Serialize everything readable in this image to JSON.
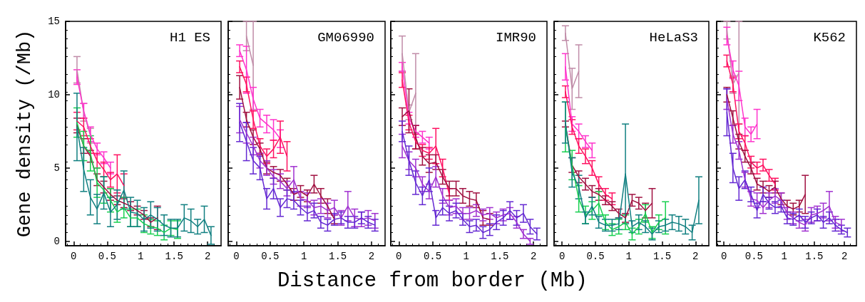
{
  "chart_data": [
    {
      "type": "line",
      "title": "H1 ES",
      "ylabel": "Gene density (/Mb)",
      "xlim": [
        -0.12,
        2.2
      ],
      "ylim": [
        -0.3,
        15
      ],
      "xticks": [
        0,
        0.5,
        1,
        1.5,
        2
      ],
      "yticks": [
        0,
        5,
        10,
        15
      ],
      "grid": false,
      "marker": "none",
      "line_style": "solid",
      "series": [
        {
          "color": "#c08ca8",
          "x": [
            0.05,
            0.15,
            0.25
          ],
          "values": [
            11.7,
            8.8,
            7.2
          ],
          "errors": [
            0.9,
            0.6,
            0.5
          ]
        },
        {
          "color": "#ff33cc",
          "x": [
            0.05,
            0.15,
            0.25,
            0.35,
            0.45,
            0.55
          ],
          "values": [
            11.2,
            8.9,
            7.3,
            6.3,
            5.7,
            5.0
          ],
          "errors": [
            0.5,
            0.5,
            0.5,
            0.4,
            0.4,
            0.4
          ]
        },
        {
          "color": "#ff1060",
          "x": [
            0.05,
            0.15,
            0.25,
            0.35,
            0.45,
            0.55,
            0.65,
            0.75
          ],
          "values": [
            8.2,
            7.8,
            6.5,
            5.5,
            4.9,
            4.2,
            4.6,
            3.8
          ],
          "errors": [
            0.6,
            0.6,
            0.5,
            0.5,
            0.5,
            0.5,
            1.3,
            0.8
          ]
        },
        {
          "color": "#a01040",
          "x": [
            0.05,
            0.15,
            0.25,
            0.35,
            0.45,
            0.55,
            0.65,
            0.75,
            0.85,
            0.95,
            1.05,
            1.15,
            1.25
          ],
          "values": [
            7.9,
            6.5,
            5.8,
            4.2,
            3.7,
            3.2,
            2.8,
            2.6,
            2.4,
            2.1,
            1.8,
            1.3,
            1.6
          ],
          "errors": [
            0.5,
            0.5,
            0.4,
            0.4,
            0.4,
            0.4,
            0.3,
            0.3,
            0.3,
            0.3,
            0.3,
            0.3,
            0.8
          ]
        },
        {
          "color": "#18d050",
          "x": [
            0.05,
            0.15,
            0.25,
            0.35,
            0.45,
            0.55,
            0.65,
            0.75,
            0.85,
            0.95,
            1.05,
            1.15,
            1.25,
            1.35,
            1.45,
            1.55
          ],
          "values": [
            8.1,
            6.5,
            6.0,
            4.0,
            3.5,
            2.8,
            2.0,
            2.3,
            1.6,
            1.6,
            1.2,
            1.0,
            0.9,
            0.6,
            0.9,
            0.8
          ],
          "errors": [
            1.0,
            1.0,
            1.2,
            1.0,
            0.9,
            0.8,
            0.7,
            0.7,
            0.6,
            0.6,
            0.6,
            0.5,
            0.5,
            0.5,
            0.5,
            0.6
          ]
        },
        {
          "color": "#107f80",
          "x": [
            0.05,
            0.15,
            0.25,
            0.35,
            0.45,
            0.55,
            0.65,
            0.75,
            0.85,
            0.95,
            1.05,
            1.15,
            1.25,
            1.35,
            1.45,
            1.55,
            1.65,
            1.75,
            1.85,
            1.95,
            2.05
          ],
          "values": [
            7.8,
            4.9,
            3.0,
            2.2,
            3.3,
            2.0,
            2.5,
            3.5,
            2.0,
            1.9,
            1.5,
            1.8,
            1.5,
            1.1,
            0.9,
            0.9,
            1.6,
            1.4,
            1.0,
            1.5,
            0.4
          ],
          "errors": [
            2.3,
            1.5,
            1.2,
            1.0,
            1.1,
            1.0,
            1.0,
            1.3,
            1.0,
            0.9,
            0.8,
            0.9,
            0.8,
            0.7,
            0.6,
            0.6,
            0.9,
            0.8,
            0.5,
            0.9,
            0.6
          ]
        }
      ]
    },
    {
      "type": "line",
      "title": "GM06990",
      "xlim": [
        -0.12,
        2.2
      ],
      "ylim": [
        -0.3,
        15
      ],
      "xticks": [
        0,
        0.5,
        1,
        1.5,
        2
      ],
      "yticks": [
        0,
        5,
        10,
        15
      ],
      "tick_labels": "x",
      "grid": false,
      "marker": "none",
      "line_style": "solid",
      "series": [
        {
          "color": "#c08ca8",
          "x": [
            0.15,
            0.25
          ],
          "values": [
            14.0,
            12.0
          ],
          "errors": [
            1.0,
            3.0
          ]
        },
        {
          "color": "#ff33cc",
          "x": [
            0.05,
            0.15,
            0.25,
            0.35,
            0.45,
            0.55,
            0.65
          ],
          "values": [
            13.0,
            11.7,
            9.7,
            8.4,
            8.0,
            7.6,
            7.0
          ],
          "errors": [
            0.4,
            1.6,
            0.8,
            0.6,
            0.6,
            0.7,
            0.6
          ]
        },
        {
          "color": "#ff1060",
          "x": [
            0.05,
            0.15,
            0.25,
            0.35,
            0.45,
            0.55,
            0.65,
            0.75
          ],
          "values": [
            11.9,
            10.7,
            8.3,
            6.5,
            5.8,
            6.3,
            7.1,
            5.8
          ],
          "errors": [
            0.4,
            0.5,
            0.6,
            0.5,
            0.5,
            0.6,
            1.1,
            1.0
          ]
        },
        {
          "color": "#a01040",
          "x": [
            0.05,
            0.15,
            0.25,
            0.35,
            0.45,
            0.55,
            0.65,
            0.75,
            0.85,
            0.95,
            1.05,
            1.15,
            1.25,
            1.35,
            1.45
          ],
          "values": [
            10.5,
            8.3,
            7.1,
            6.3,
            5.0,
            4.7,
            4.5,
            3.9,
            3.2,
            3.4,
            3.1,
            3.9,
            3.1,
            2.4,
            1.5
          ],
          "errors": [
            0.8,
            0.5,
            0.5,
            0.4,
            0.4,
            0.4,
            0.4,
            0.4,
            0.4,
            0.4,
            0.4,
            0.6,
            0.5,
            0.5,
            0.3
          ]
        },
        {
          "color": "#a030d0",
          "x": [
            0.05,
            0.15,
            0.25,
            0.35,
            0.45,
            0.55,
            0.65,
            0.75,
            0.85,
            0.95,
            1.05,
            1.15,
            1.25,
            1.35,
            1.45,
            1.55,
            1.65,
            1.75,
            1.85,
            1.95,
            2.05
          ],
          "values": [
            8.3,
            7.4,
            6.5,
            5.5,
            5.0,
            4.4,
            4.1,
            3.6,
            4.2,
            2.9,
            2.8,
            2.3,
            2.4,
            2.1,
            2.3,
            1.6,
            2.4,
            1.6,
            1.5,
            1.6,
            1.4
          ],
          "errors": [
            0.9,
            0.7,
            0.6,
            0.5,
            0.5,
            0.5,
            0.5,
            0.5,
            0.9,
            0.5,
            0.5,
            0.5,
            0.5,
            0.5,
            0.5,
            0.5,
            1.0,
            0.6,
            0.5,
            0.5,
            0.5
          ]
        },
        {
          "color": "#6428d2",
          "x": [
            0.05,
            0.15,
            0.25,
            0.35,
            0.45,
            0.55,
            0.65,
            0.75,
            0.85,
            0.95,
            1.05,
            1.15,
            1.25,
            1.35,
            1.45,
            1.55,
            1.65,
            1.75,
            1.85,
            1.95,
            2.05
          ],
          "values": [
            8.1,
            6.8,
            5.5,
            5.0,
            2.9,
            3.6,
            2.3,
            2.9,
            2.8,
            2.3,
            1.9,
            2.1,
            1.3,
            1.1,
            1.5,
            1.6,
            1.3,
            1.3,
            1.6,
            1.3,
            1.1
          ],
          "errors": [
            1.3,
            1.3,
            0.9,
            0.8,
            0.7,
            0.7,
            0.6,
            0.6,
            0.6,
            0.5,
            0.5,
            0.5,
            0.4,
            0.4,
            0.4,
            0.4,
            0.4,
            0.4,
            0.4,
            0.4,
            0.4
          ]
        }
      ]
    },
    {
      "type": "line",
      "title": "IMR90",
      "xlabel": "Distance from border (Mb)",
      "xlim": [
        -0.12,
        2.2
      ],
      "ylim": [
        -0.3,
        15
      ],
      "xticks": [
        0,
        0.5,
        1,
        1.5,
        2
      ],
      "yticks": [
        0,
        5,
        10,
        15
      ],
      "tick_labels": "x",
      "grid": false,
      "marker": "none",
      "line_style": "solid",
      "series": [
        {
          "color": "#c08ca8",
          "x": [
            0.05,
            0.15,
            0.25
          ],
          "values": [
            12.8,
            8.8,
            10.1
          ],
          "errors": [
            1.2,
            0.5,
            2.7
          ]
        },
        {
          "color": "#ff33cc",
          "x": [
            0.05,
            0.15,
            0.25,
            0.35,
            0.45
          ],
          "values": [
            11.9,
            8.4,
            7.5,
            7.1,
            6.7
          ],
          "errors": [
            0.3,
            0.4,
            0.4,
            0.4,
            0.4
          ]
        },
        {
          "color": "#ff1060",
          "x": [
            0.05,
            0.15,
            0.25,
            0.35,
            0.45,
            0.55,
            0.65,
            0.75
          ],
          "values": [
            11.0,
            8.1,
            6.8,
            6.2,
            6.0,
            6.5,
            5.0,
            3.2
          ],
          "errors": [
            0.5,
            0.5,
            0.5,
            0.4,
            0.4,
            1.2,
            0.6,
            0.4
          ]
        },
        {
          "color": "#a01040",
          "x": [
            0.05,
            0.15,
            0.25,
            0.35,
            0.45,
            0.55,
            0.65,
            0.75,
            0.85,
            0.95,
            1.05,
            1.15,
            1.25,
            1.35
          ],
          "values": [
            8.5,
            8.9,
            7.1,
            5.8,
            5.3,
            5.4,
            4.4,
            3.6,
            3.6,
            3.1,
            2.9,
            2.8,
            1.6,
            1.5
          ],
          "errors": [
            0.6,
            1.5,
            0.8,
            0.6,
            0.6,
            0.5,
            0.5,
            0.5,
            0.5,
            0.5,
            0.5,
            0.5,
            0.5,
            0.4
          ]
        },
        {
          "color": "#a030d0",
          "x": [
            0.05,
            0.15,
            0.25,
            0.35,
            0.45,
            0.55,
            0.65,
            0.75,
            0.85,
            0.95,
            1.05,
            1.15,
            1.25,
            1.35,
            1.45,
            1.55,
            1.65,
            1.75,
            1.85,
            1.95
          ],
          "values": [
            6.5,
            5.5,
            5.0,
            3.9,
            3.4,
            4.4,
            3.1,
            2.3,
            2.4,
            1.9,
            1.9,
            2.1,
            1.8,
            1.9,
            1.6,
            1.8,
            1.9,
            1.3,
            0.5,
            0.0
          ],
          "errors": [
            0.8,
            0.6,
            0.6,
            0.5,
            0.5,
            0.7,
            0.5,
            0.5,
            0.5,
            0.4,
            0.4,
            0.4,
            0.4,
            0.4,
            0.4,
            0.4,
            0.4,
            0.4,
            0.3,
            0.2
          ]
        },
        {
          "color": "#6428d2",
          "x": [
            0.05,
            0.15,
            0.25,
            0.35,
            0.45,
            0.55,
            0.65,
            0.75,
            0.85,
            0.95,
            1.05,
            1.15,
            1.25,
            1.35,
            1.45,
            1.55,
            1.65,
            1.75,
            1.85,
            1.95,
            2.05
          ],
          "values": [
            7.5,
            5.5,
            4.0,
            3.1,
            4.2,
            1.6,
            2.3,
            1.9,
            2.1,
            1.5,
            1.0,
            1.1,
            0.6,
            0.8,
            1.3,
            1.6,
            2.1,
            1.6,
            1.9,
            1.0,
            0.5
          ],
          "errors": [
            0.7,
            1.0,
            0.8,
            0.6,
            0.8,
            0.5,
            0.5,
            0.5,
            0.5,
            0.4,
            0.4,
            0.4,
            0.4,
            0.4,
            0.5,
            0.5,
            0.6,
            0.5,
            0.6,
            0.5,
            0.4
          ]
        }
      ]
    },
    {
      "type": "line",
      "title": "HeLaS3",
      "xlim": [
        -0.12,
        2.2
      ],
      "ylim": [
        -0.3,
        15
      ],
      "xticks": [
        0,
        0.5,
        1,
        1.5,
        2
      ],
      "yticks": [
        0,
        5,
        10,
        15
      ],
      "tick_labels": "x",
      "grid": false,
      "marker": "none",
      "line_style": "solid",
      "series": [
        {
          "color": "#c08ca8",
          "x": [
            0.05,
            0.15,
            0.25
          ],
          "values": [
            14.2,
            10.4,
            11.6
          ],
          "errors": [
            0.5,
            1.4,
            1.8
          ]
        },
        {
          "color": "#ff33cc",
          "x": [
            0.05,
            0.15,
            0.25,
            0.35,
            0.45
          ],
          "values": [
            11.9,
            8.0,
            7.5,
            6.8,
            6.2
          ],
          "errors": [
            0.9,
            0.5,
            0.5,
            0.4,
            0.5
          ]
        },
        {
          "color": "#ff1060",
          "x": [
            0.05,
            0.15,
            0.25,
            0.35,
            0.45,
            0.55,
            0.65,
            0.75
          ],
          "values": [
            10.2,
            7.8,
            6.5,
            5.8,
            5.0,
            3.9,
            3.2,
            2.9
          ],
          "errors": [
            0.4,
            0.5,
            0.5,
            0.5,
            0.5,
            0.5,
            0.4,
            0.4
          ]
        },
        {
          "color": "#a01040",
          "x": [
            0.05,
            0.15,
            0.25,
            0.35,
            0.45,
            0.55,
            0.65,
            0.75,
            0.85,
            0.95,
            1.05,
            1.15,
            1.25,
            1.35
          ],
          "values": [
            8.0,
            5.2,
            4.4,
            3.9,
            3.4,
            3.2,
            2.8,
            2.4,
            1.9,
            1.6,
            2.8,
            2.6,
            2.1,
            2.6
          ],
          "errors": [
            0.2,
            0.5,
            0.4,
            0.4,
            0.4,
            0.4,
            0.3,
            0.3,
            0.3,
            0.3,
            0.4,
            0.4,
            0.5,
            1.0
          ]
        },
        {
          "color": "#18d050",
          "x": [
            0.05,
            0.15,
            0.25,
            0.35,
            0.45,
            0.55,
            0.65,
            0.75,
            0.85,
            0.95,
            1.05,
            1.15,
            1.25,
            1.35,
            1.45,
            1.55
          ],
          "values": [
            7.8,
            5.2,
            2.9,
            1.8,
            2.1,
            2.6,
            1.3,
            0.8,
            1.0,
            1.3,
            0.5,
            1.0,
            1.9,
            0.6,
            1.3,
            1.6
          ],
          "errors": [
            1.7,
            1.0,
            0.9,
            0.6,
            0.6,
            0.8,
            0.5,
            0.4,
            0.5,
            0.5,
            0.4,
            0.5,
            0.6,
            0.4,
            0.5,
            1.1
          ]
        },
        {
          "color": "#107f80",
          "x": [
            0.05,
            0.15,
            0.25,
            0.35,
            0.45,
            0.55,
            0.65,
            0.75,
            0.85,
            0.95,
            1.05,
            1.15,
            1.25,
            1.35,
            1.45,
            1.55,
            1.65,
            1.75,
            1.85,
            1.95,
            2.05
          ],
          "values": [
            8.1,
            4.7,
            3.7,
            1.6,
            2.4,
            1.3,
            1.1,
            1.1,
            1.2,
            4.6,
            1.0,
            1.3,
            1.0,
            0.5,
            1.0,
            1.1,
            1.3,
            1.2,
            1.0,
            0.6,
            2.8
          ],
          "errors": [
            1.4,
            1.0,
            0.8,
            0.4,
            0.6,
            0.4,
            0.4,
            0.4,
            0.4,
            3.4,
            0.4,
            0.5,
            0.4,
            0.4,
            0.4,
            0.4,
            0.5,
            0.5,
            0.5,
            0.5,
            1.6
          ]
        }
      ]
    },
    {
      "type": "line",
      "title": "K562",
      "xlim": [
        -0.12,
        2.2
      ],
      "ylim": [
        -0.3,
        15
      ],
      "xticks": [
        0,
        0.5,
        1,
        1.5,
        2
      ],
      "yticks": [
        0,
        5,
        10,
        15
      ],
      "tick_labels": "x",
      "grid": false,
      "marker": "none",
      "line_style": "solid",
      "series": [
        {
          "color": "#c08ca8",
          "x": [
            0.05,
            0.15,
            0.25
          ],
          "values": [
            14.4,
            10.7,
            11.5
          ],
          "errors": [
            0.6,
            0.6,
            3.5
          ]
        },
        {
          "color": "#ff33cc",
          "x": [
            0.05,
            0.15,
            0.25,
            0.35,
            0.45,
            0.55
          ],
          "values": [
            14.0,
            11.7,
            10.6,
            7.8,
            7.3,
            8.0
          ],
          "errors": [
            0.6,
            0.6,
            1.0,
            0.6,
            0.5,
            1.0
          ]
        },
        {
          "color": "#ff1060",
          "x": [
            0.05,
            0.15,
            0.25,
            0.35,
            0.45,
            0.55,
            0.65,
            0.75,
            0.85
          ],
          "values": [
            12.3,
            10.7,
            7.5,
            6.7,
            5.4,
            5.0,
            5.2,
            4.5,
            3.9
          ],
          "errors": [
            0.4,
            0.5,
            0.5,
            0.5,
            0.4,
            0.4,
            0.4,
            0.4,
            0.4
          ]
        },
        {
          "color": "#a01040",
          "x": [
            0.05,
            0.15,
            0.25,
            0.35,
            0.45,
            0.55,
            0.65,
            0.75,
            0.85,
            0.95,
            1.05,
            1.15,
            1.25,
            1.35
          ],
          "values": [
            10.0,
            8.4,
            6.8,
            5.8,
            5.0,
            3.9,
            3.7,
            3.4,
            3.7,
            2.9,
            2.4,
            2.2,
            2.4,
            3.2
          ],
          "errors": [
            0.5,
            0.5,
            0.5,
            0.4,
            0.4,
            0.4,
            0.4,
            0.4,
            0.4,
            0.4,
            0.4,
            0.4,
            0.4,
            1.3
          ]
        },
        {
          "color": "#a030d0",
          "x": [
            0.05,
            0.15,
            0.25,
            0.35,
            0.45,
            0.55,
            0.65,
            0.75,
            0.85,
            0.95,
            1.05,
            1.15,
            1.25,
            1.35,
            1.45,
            1.55,
            1.65,
            1.75,
            1.85,
            1.95
          ],
          "values": [
            9.7,
            7.3,
            6.2,
            4.2,
            2.9,
            2.8,
            2.3,
            2.8,
            3.1,
            2.8,
            1.9,
            1.6,
            1.3,
            1.1,
            1.8,
            1.9,
            2.1,
            2.4,
            1.3,
            1.1
          ],
          "errors": [
            0.7,
            0.6,
            0.6,
            0.5,
            0.5,
            0.5,
            0.4,
            0.5,
            0.5,
            0.5,
            0.4,
            0.4,
            0.4,
            0.4,
            0.5,
            0.5,
            0.5,
            1.0,
            0.4,
            0.4
          ]
        },
        {
          "color": "#6428d2",
          "x": [
            0.05,
            0.15,
            0.25,
            0.35,
            0.45,
            0.55,
            0.65,
            0.75,
            0.85,
            0.95,
            1.05,
            1.15,
            1.25,
            1.35,
            1.45,
            1.55,
            1.65,
            1.75,
            1.85,
            1.95,
            2.05
          ],
          "values": [
            8.8,
            5.0,
            3.6,
            4.2,
            3.2,
            2.1,
            3.2,
            2.6,
            2.3,
            2.4,
            1.6,
            1.5,
            1.8,
            1.3,
            1.6,
            1.8,
            1.3,
            1.6,
            1.1,
            0.8,
            0.6
          ],
          "errors": [
            1.6,
            1.0,
            0.8,
            0.6,
            0.5,
            0.5,
            0.5,
            0.4,
            0.4,
            0.4,
            0.4,
            0.4,
            0.4,
            0.4,
            0.4,
            0.4,
            0.4,
            0.4,
            0.4,
            0.3,
            0.3
          ]
        }
      ]
    }
  ]
}
